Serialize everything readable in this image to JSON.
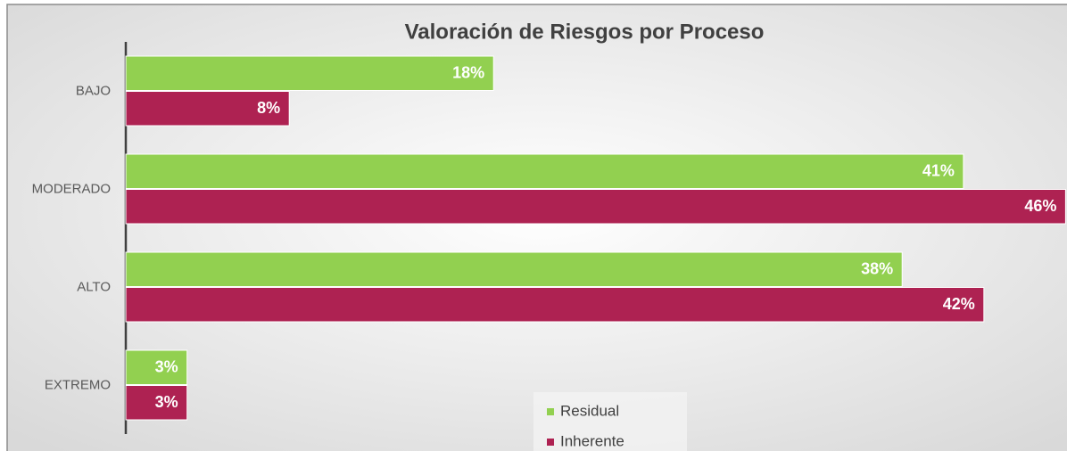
{
  "chart_data": {
    "type": "bar",
    "title": "Valoración de Riesgos por Proceso",
    "categories": [
      "BAJO",
      "MODERADO",
      "ALTO",
      "EXTREMO"
    ],
    "series": [
      {
        "name": "Residual",
        "color": "#92d050",
        "values": [
          18,
          41,
          38,
          3
        ],
        "value_labels": [
          "18%",
          "41%",
          "38%",
          "3%"
        ]
      },
      {
        "name": "Inherente",
        "color": "#ae2252",
        "values": [
          8,
          46,
          42,
          3
        ],
        "value_labels": [
          "8%",
          "46%",
          "42%",
          "3%"
        ]
      }
    ],
    "legend": "bottom"
  }
}
